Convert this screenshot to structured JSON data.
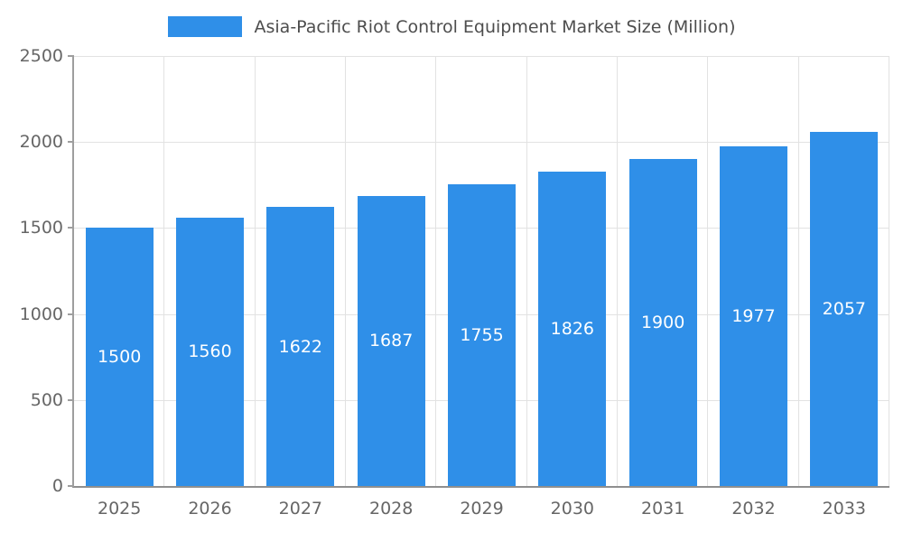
{
  "chart_data": {
    "type": "bar",
    "title": "Asia-Pacific Riot Control Equipment Market Size (Million)",
    "categories": [
      "2025",
      "2026",
      "2027",
      "2028",
      "2029",
      "2030",
      "2031",
      "2032",
      "2033"
    ],
    "values": [
      1500,
      1560,
      1622,
      1687,
      1755,
      1826,
      1900,
      1977,
      2057
    ],
    "xlabel": "",
    "ylabel": "",
    "ylim": [
      0,
      2500
    ],
    "yticks": [
      0,
      500,
      1000,
      1500,
      2000,
      2500
    ],
    "grid": true,
    "legend_position": "top",
    "bar_color": "#2F8FE8",
    "value_label_color": "#ffffff",
    "axis_text_color": "#666666",
    "title_color": "#4d4d4d"
  }
}
